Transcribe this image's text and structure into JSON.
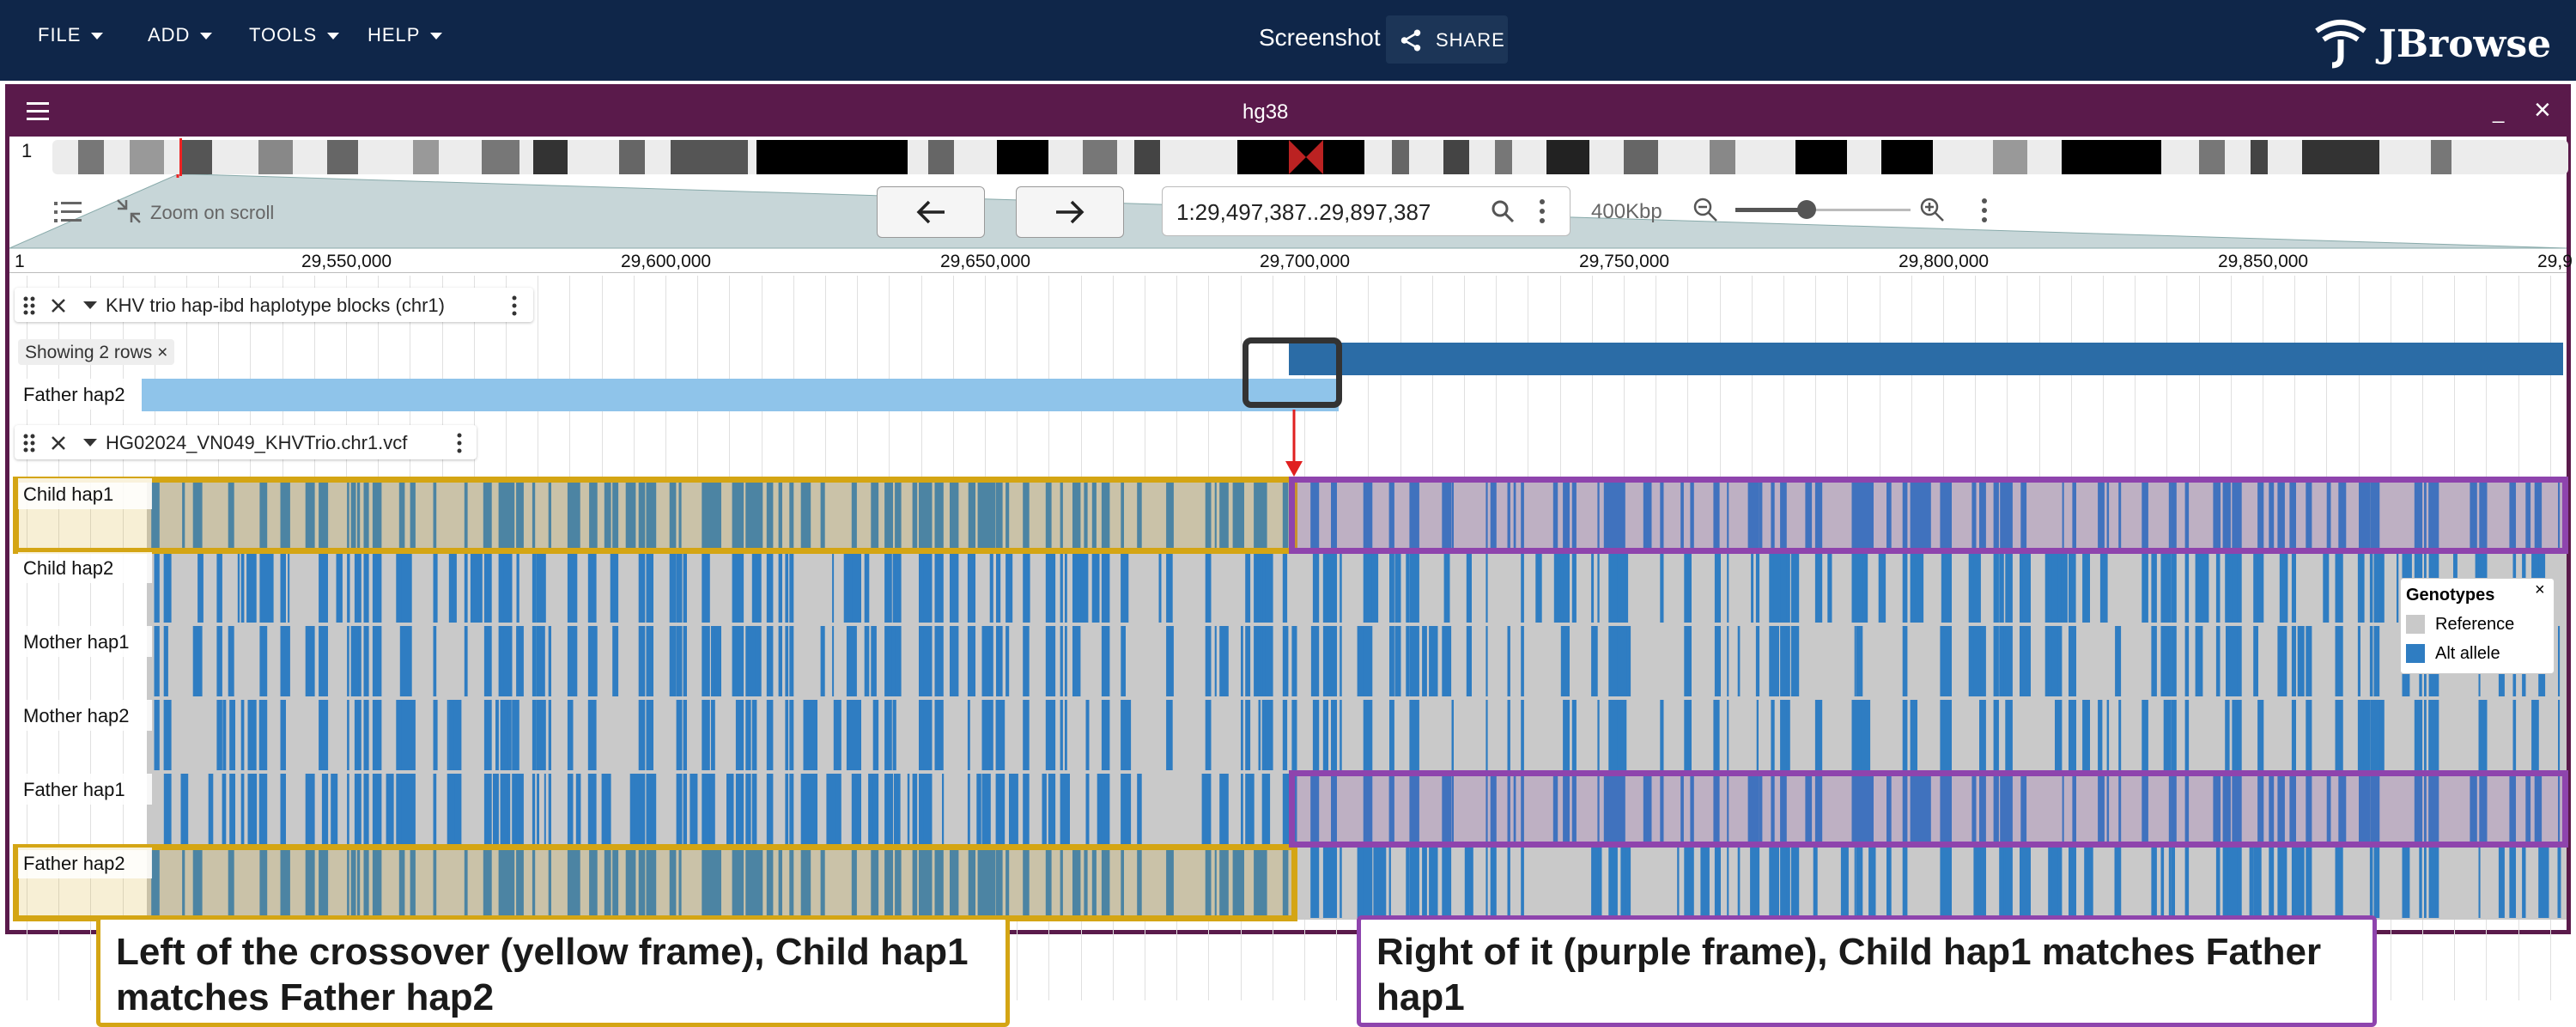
{
  "menubar": {
    "items": [
      "FILE",
      "ADD",
      "TOOLS",
      "HELP"
    ],
    "session_title": "Screenshot",
    "share_label": "SHARE",
    "logo_text": "JBrowse"
  },
  "view": {
    "assembly_title": "hg38",
    "chrom_label": "1",
    "zoom_on_scroll": "Zoom on scroll",
    "location": "1:29,497,387..29,897,387",
    "zoom_level_label": "400Kbp",
    "ruler_ticks": [
      "29,550,000",
      "29,600,000",
      "29,650,000",
      "29,700,000",
      "29,750,000",
      "29,800,000",
      "29,850,000",
      "29,9"
    ],
    "ruler_start_label": "1"
  },
  "tracks": {
    "haplotype_track": {
      "title": "KHV trio hap-ibd haplotype blocks (chr1)",
      "showing_rows": "Showing 2 rows ×",
      "row_label": "Father hap2"
    },
    "vcf_track": {
      "title": "HG02024_VN049_KHVTrio.chr1.vcf",
      "rows": [
        "Child hap1",
        "Child hap2",
        "Mother hap1",
        "Mother hap2",
        "Father hap1",
        "Father hap2"
      ]
    }
  },
  "legend": {
    "title": "Genotypes",
    "close": "×",
    "items": [
      {
        "label": "Reference",
        "color": "#c9c9c9"
      },
      {
        "label": "Alt allele",
        "color": "#2f7dc2"
      }
    ]
  },
  "annotations": {
    "left": "Left of the crossover (yellow frame), Child hap1 matches Father hap2",
    "right": "Right of it (purple frame), Child hap1 matches Father hap1"
  },
  "colors": {
    "header_bg": "#0f2649",
    "view_border": "#5a1a4b",
    "yellow_frame": "#d4a514",
    "purple_frame": "#8e44ad",
    "alt_allele": "#2f7dc2",
    "reference": "#c9c9c9"
  }
}
